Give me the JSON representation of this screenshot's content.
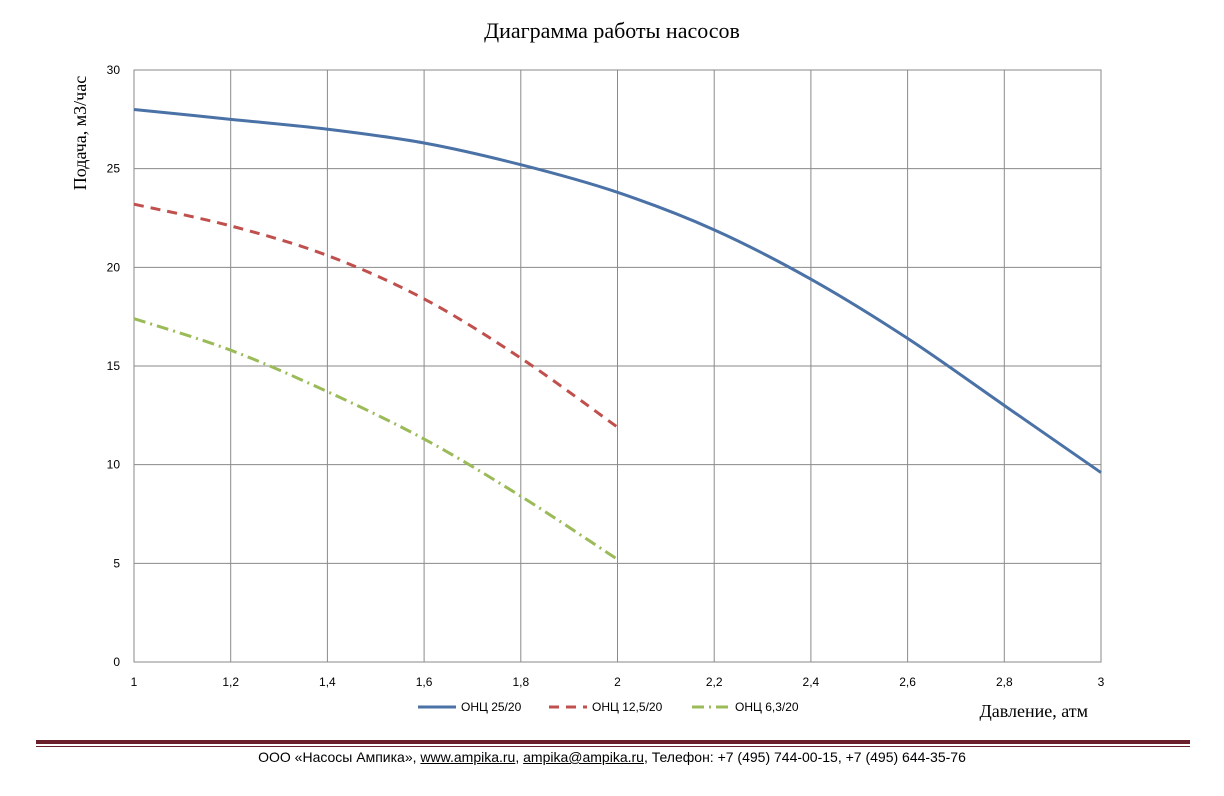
{
  "chart_data": {
    "type": "line",
    "title": "Диаграмма работы насосов",
    "xlabel": "Давление, атм",
    "ylabel": "Подача, м3/час",
    "xlim": [
      1,
      3
    ],
    "ylim": [
      0,
      30
    ],
    "x_ticks": [
      "1",
      "1,2",
      "1,4",
      "1,6",
      "1,8",
      "2",
      "2,2",
      "2,4",
      "2,6",
      "2,8",
      "3"
    ],
    "y_ticks": [
      "0",
      "5",
      "10",
      "15",
      "20",
      "25",
      "30"
    ],
    "grid": true,
    "legend_position": "bottom",
    "series": [
      {
        "name": "ОНЦ 25/20",
        "color": "#4a72a6",
        "dash": "solid",
        "points": [
          [
            1.0,
            28.0
          ],
          [
            1.2,
            27.5
          ],
          [
            1.4,
            27.0
          ],
          [
            1.6,
            26.3
          ],
          [
            1.8,
            25.2
          ],
          [
            2.0,
            23.8
          ],
          [
            2.2,
            21.9
          ],
          [
            2.4,
            19.4
          ],
          [
            2.6,
            16.4
          ],
          [
            2.8,
            13.0
          ],
          [
            3.0,
            9.6
          ]
        ]
      },
      {
        "name": "ОНЦ 12,5/20",
        "color": "#c0504d",
        "dash": "dash",
        "points": [
          [
            1.0,
            23.2
          ],
          [
            1.2,
            22.1
          ],
          [
            1.4,
            20.6
          ],
          [
            1.6,
            18.4
          ],
          [
            1.8,
            15.4
          ],
          [
            2.0,
            11.9
          ]
        ]
      },
      {
        "name": "ОНЦ 6,3/20",
        "color": "#9bbb59",
        "dash": "dashdot",
        "points": [
          [
            1.0,
            17.4
          ],
          [
            1.2,
            15.8
          ],
          [
            1.4,
            13.7
          ],
          [
            1.6,
            11.3
          ],
          [
            1.8,
            8.4
          ],
          [
            2.0,
            5.2
          ]
        ]
      }
    ]
  },
  "footer": {
    "company": "ООО «Насосы Ампика», ",
    "website": "www.ampika.ru",
    "sep": ", ",
    "email": "ampika@ampika.ru",
    "phones": ", Телефон: +7 (495) 744-00-15, +7 (495) 644-35-76"
  }
}
